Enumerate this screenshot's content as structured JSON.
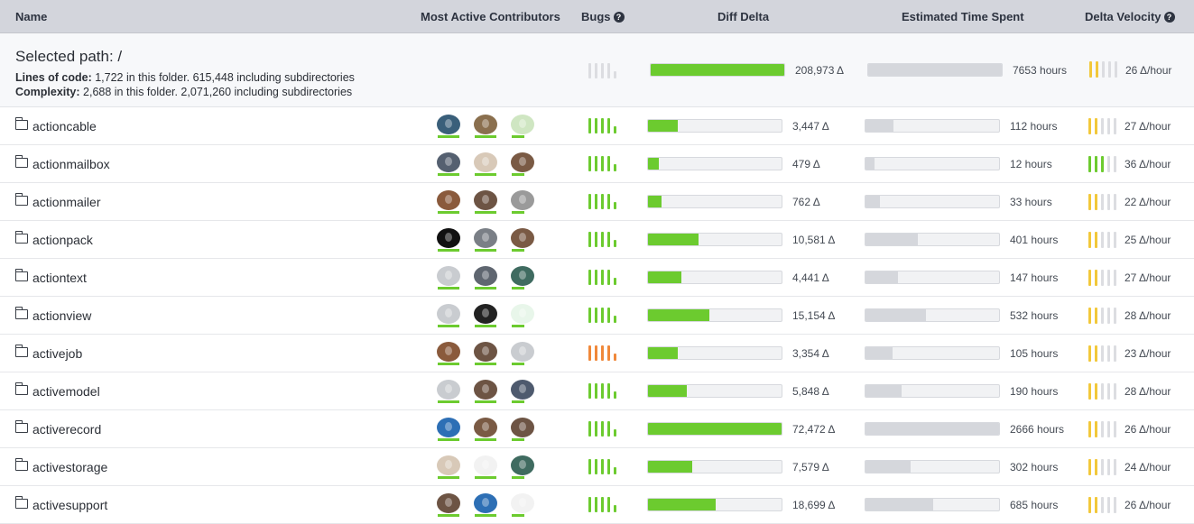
{
  "header": {
    "name": "Name",
    "contributors": "Most Active Contributors",
    "bugs": "Bugs",
    "diff_delta": "Diff Delta",
    "time_spent": "Estimated Time Spent",
    "delta_velocity": "Delta Velocity",
    "help_glyph": "?"
  },
  "summary": {
    "title": "Selected path: /",
    "loc_label": "Lines of code:",
    "loc_text": "1,722 in this folder. 615,448 including subdirectories",
    "complexity_label": "Complexity:",
    "complexity_text": "2,688 in this folder. 2,071,260 including subdirectories",
    "diff_delta": "208,973 Δ",
    "diff_fraction": 1.0,
    "time_spent": "7653 hours",
    "time_fraction": 1.0,
    "velocity": "26 Δ/hour",
    "velocity_level": 2,
    "bugs_level": 0
  },
  "rows": [
    {
      "name": "actioncable",
      "avatars": [
        "#3a5f7a",
        "#8a6f4e",
        "#cfe6c2"
      ],
      "bugs_color": "green",
      "diff": "3,447 Δ",
      "diff_fraction": 0.22,
      "time": "112 hours",
      "time_fraction": 0.21,
      "velocity": "27 Δ/hour",
      "velocity_level": 2,
      "velocity_color": "yellow"
    },
    {
      "name": "actionmailbox",
      "avatars": [
        "#556070",
        "#d8c9b8",
        "#7a5a44"
      ],
      "bugs_color": "green",
      "diff": "479 Δ",
      "diff_fraction": 0.08,
      "time": "12 hours",
      "time_fraction": 0.07,
      "velocity": "36 Δ/hour",
      "velocity_level": 3,
      "velocity_color": "green"
    },
    {
      "name": "actionmailer",
      "avatars": [
        "#8a5a3c",
        "#6d5444",
        "#9a9a9a"
      ],
      "bugs_color": "green",
      "diff": "762 Δ",
      "diff_fraction": 0.1,
      "time": "33 hours",
      "time_fraction": 0.11,
      "velocity": "22 Δ/hour",
      "velocity_level": 2,
      "velocity_color": "yellow"
    },
    {
      "name": "actionpack",
      "avatars": [
        "#111111",
        "#7a7f86",
        "#7a5a44"
      ],
      "bugs_color": "green",
      "diff": "10,581 Δ",
      "diff_fraction": 0.38,
      "time": "401 hours",
      "time_fraction": 0.39,
      "velocity": "25 Δ/hour",
      "velocity_level": 2,
      "velocity_color": "yellow"
    },
    {
      "name": "actiontext",
      "avatars": [
        "#c9ccd0",
        "#5f6670",
        "#3f6b60"
      ],
      "bugs_color": "green",
      "diff": "4,441 Δ",
      "diff_fraction": 0.25,
      "time": "147 hours",
      "time_fraction": 0.24,
      "velocity": "27 Δ/hour",
      "velocity_level": 2,
      "velocity_color": "yellow"
    },
    {
      "name": "actionview",
      "avatars": [
        "#c9ccd0",
        "#222222",
        "#e8f6ea"
      ],
      "bugs_color": "green",
      "diff": "15,154 Δ",
      "diff_fraction": 0.46,
      "time": "532 hours",
      "time_fraction": 0.45,
      "velocity": "28 Δ/hour",
      "velocity_level": 2,
      "velocity_color": "yellow"
    },
    {
      "name": "activejob",
      "avatars": [
        "#8a5a3c",
        "#6d5444",
        "#c9ccd0"
      ],
      "bugs_color": "orange",
      "diff": "3,354 Δ",
      "diff_fraction": 0.22,
      "time": "105 hours",
      "time_fraction": 0.2,
      "velocity": "23 Δ/hour",
      "velocity_level": 2,
      "velocity_color": "yellow"
    },
    {
      "name": "activemodel",
      "avatars": [
        "#c9ccd0",
        "#6d5444",
        "#4e5a6e"
      ],
      "bugs_color": "green",
      "diff": "5,848 Δ",
      "diff_fraction": 0.29,
      "time": "190 hours",
      "time_fraction": 0.27,
      "velocity": "28 Δ/hour",
      "velocity_level": 2,
      "velocity_color": "yellow"
    },
    {
      "name": "activerecord",
      "avatars": [
        "#2d6fb5",
        "#7a5a44",
        "#6d5444"
      ],
      "bugs_color": "green",
      "diff": "72,472 Δ",
      "diff_fraction": 1.0,
      "time": "2666 hours",
      "time_fraction": 1.0,
      "velocity": "26 Δ/hour",
      "velocity_level": 2,
      "velocity_color": "yellow"
    },
    {
      "name": "activestorage",
      "avatars": [
        "#d8c9b8",
        "#f2f2f2",
        "#3f6b60"
      ],
      "bugs_color": "green",
      "diff": "7,579 Δ",
      "diff_fraction": 0.33,
      "time": "302 hours",
      "time_fraction": 0.34,
      "velocity": "24 Δ/hour",
      "velocity_level": 2,
      "velocity_color": "yellow"
    },
    {
      "name": "activesupport",
      "avatars": [
        "#6d5444",
        "#2d6fb5",
        "#f2f2f2"
      ],
      "bugs_color": "green",
      "diff": "18,699 Δ",
      "diff_fraction": 0.51,
      "time": "685 hours",
      "time_fraction": 0.51,
      "velocity": "26 Δ/hour",
      "velocity_level": 2,
      "velocity_color": "yellow"
    }
  ],
  "colors": {
    "green": "#6ccb2f",
    "orange": "#f0883a",
    "yellow": "#f2c83a",
    "inactive": "#dcdde1",
    "time_fill": "#d5d7dc",
    "header_bg": "#d3d5dc"
  },
  "icons": {
    "folder": "folder-icon",
    "help": "help-circle-icon",
    "avatar": "contributor-avatar"
  }
}
